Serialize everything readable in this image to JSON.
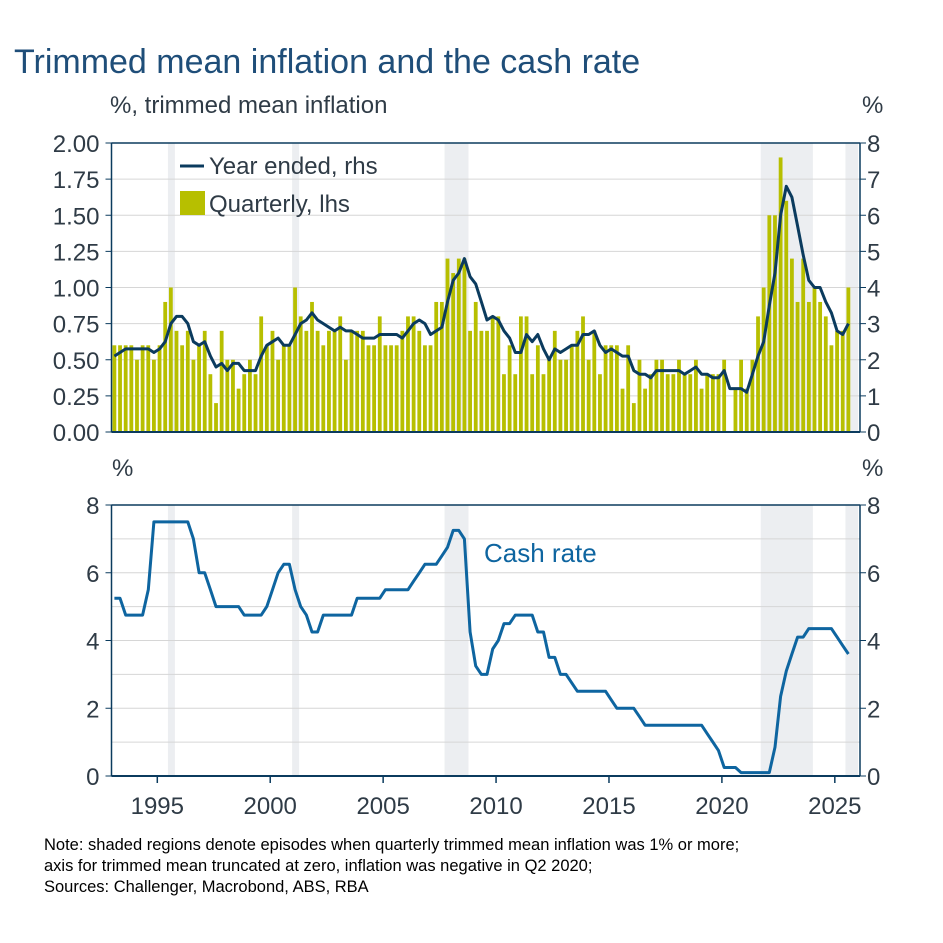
{
  "title": "Trimmed mean inflation and the cash rate",
  "colors": {
    "title": "#1f4e79",
    "quarterly_bars": "#b7bf00",
    "year_ended_line": "#0b3b5e",
    "cash_rate_line": "#0e65a0",
    "shading": "#eceef1",
    "axis": "#0b3b5e",
    "grid": "#d6d6d6"
  },
  "shaded_episodes": [
    [
      "1995Q3",
      "1995Q3"
    ],
    [
      "2001Q1",
      "2001Q1"
    ],
    [
      "2007Q4",
      "2008Q3"
    ],
    [
      "2021Q4",
      "2023Q4"
    ],
    [
      "2025Q3",
      "2025Q4"
    ]
  ],
  "x_axis": {
    "ticks": [
      "1995",
      "2000",
      "2005",
      "2010",
      "2015",
      "2020",
      "2025"
    ]
  },
  "chart_data": [
    {
      "type": "bar+line",
      "left_axis_label": "%, trimmed mean inflation",
      "right_axis_label": "%",
      "ylim_left": [
        0,
        2
      ],
      "ylim_right": [
        0,
        8
      ],
      "yticks_left": [
        "0.00",
        "0.25",
        "0.50",
        "0.75",
        "1.00",
        "1.25",
        "1.50",
        "1.75",
        "2.00"
      ],
      "yticks_right": [
        "0",
        "1",
        "2",
        "3",
        "4",
        "5",
        "6",
        "7",
        "8"
      ],
      "grid": true,
      "legend_placement": "top-left",
      "start_quarter": "1993Q1",
      "series": [
        {
          "name": "Year ended, rhs",
          "type": "line",
          "axis": "right",
          "values": [
            2.1,
            2.2,
            2.3,
            2.3,
            2.3,
            2.3,
            2.3,
            2.2,
            2.3,
            2.5,
            3.0,
            3.2,
            3.2,
            3.0,
            2.5,
            2.4,
            2.5,
            2.1,
            1.8,
            1.9,
            1.7,
            1.9,
            1.9,
            1.7,
            1.7,
            1.7,
            2.1,
            2.4,
            2.5,
            2.6,
            2.4,
            2.4,
            2.7,
            3.0,
            3.1,
            3.3,
            3.1,
            3.0,
            2.9,
            2.8,
            2.9,
            2.8,
            2.8,
            2.7,
            2.6,
            2.6,
            2.6,
            2.7,
            2.7,
            2.7,
            2.7,
            2.6,
            2.8,
            3.0,
            3.1,
            3.0,
            2.7,
            2.8,
            2.9,
            3.6,
            4.2,
            4.4,
            4.8,
            4.3,
            4.1,
            3.6,
            3.1,
            3.2,
            3.1,
            2.8,
            2.6,
            2.2,
            2.2,
            2.7,
            2.5,
            2.7,
            2.3,
            2.0,
            2.3,
            2.2,
            2.3,
            2.4,
            2.4,
            2.7,
            2.7,
            2.8,
            2.4,
            2.2,
            2.3,
            2.2,
            2.1,
            2.1,
            1.7,
            1.6,
            1.6,
            1.5,
            1.7,
            1.7,
            1.7,
            1.7,
            1.7,
            1.6,
            1.7,
            1.8,
            1.6,
            1.6,
            1.5,
            1.5,
            1.7,
            1.2,
            1.2,
            1.2,
            1.1,
            1.6,
            2.1,
            2.5,
            3.5,
            4.4,
            6.0,
            6.8,
            6.5,
            5.7,
            4.9,
            4.2,
            4.0,
            4.0,
            3.6,
            3.3,
            2.8,
            2.7,
            3.0
          ]
        },
        {
          "name": "Quarterly, lhs",
          "type": "bar",
          "axis": "left",
          "values": [
            0.6,
            0.6,
            0.6,
            0.6,
            0.5,
            0.6,
            0.6,
            0.5,
            0.6,
            0.9,
            1.0,
            0.7,
            0.6,
            0.7,
            0.5,
            0.6,
            0.7,
            0.4,
            0.2,
            0.7,
            0.5,
            0.5,
            0.3,
            0.4,
            0.5,
            0.4,
            0.8,
            0.6,
            0.7,
            0.5,
            0.6,
            0.6,
            1.0,
            0.8,
            0.7,
            0.9,
            0.7,
            0.6,
            0.7,
            0.7,
            0.8,
            0.5,
            0.7,
            0.7,
            0.7,
            0.6,
            0.6,
            0.8,
            0.6,
            0.6,
            0.6,
            0.7,
            0.8,
            0.8,
            0.7,
            0.6,
            0.6,
            0.9,
            0.9,
            1.2,
            1.1,
            1.2,
            1.2,
            0.7,
            0.9,
            0.7,
            0.7,
            0.8,
            0.8,
            0.4,
            0.6,
            0.4,
            0.8,
            0.8,
            0.4,
            0.6,
            0.4,
            0.5,
            0.7,
            0.5,
            0.5,
            0.6,
            0.7,
            0.8,
            0.5,
            0.7,
            0.4,
            0.6,
            0.6,
            0.6,
            0.3,
            0.6,
            0.2,
            0.5,
            0.3,
            0.4,
            0.5,
            0.5,
            0.4,
            0.4,
            0.5,
            0.4,
            0.4,
            0.5,
            0.3,
            0.4,
            0.4,
            0.4,
            0.5,
            0.0,
            0.3,
            0.5,
            0.3,
            0.5,
            0.8,
            1.0,
            1.5,
            1.5,
            1.9,
            1.6,
            1.2,
            0.9,
            1.2,
            0.9,
            1.0,
            0.9,
            0.8,
            0.6,
            0.7,
            0.7,
            1.0
          ]
        }
      ]
    },
    {
      "type": "line",
      "left_axis_label": "%",
      "right_axis_label": "%",
      "ylim": [
        0,
        8
      ],
      "yticks": [
        "0",
        "2",
        "4",
        "6",
        "8"
      ],
      "grid": true,
      "start_quarter": "1993Q1",
      "annotation": "Cash rate",
      "series": [
        {
          "name": "Cash rate",
          "values": [
            5.25,
            5.25,
            4.75,
            4.75,
            4.75,
            4.75,
            5.5,
            7.5,
            7.5,
            7.5,
            7.5,
            7.5,
            7.5,
            7.5,
            7.0,
            6.0,
            6.0,
            5.5,
            5.0,
            5.0,
            5.0,
            5.0,
            5.0,
            4.75,
            4.75,
            4.75,
            4.75,
            5.0,
            5.5,
            6.0,
            6.25,
            6.25,
            5.5,
            5.0,
            4.75,
            4.25,
            4.25,
            4.75,
            4.75,
            4.75,
            4.75,
            4.75,
            4.75,
            5.25,
            5.25,
            5.25,
            5.25,
            5.25,
            5.5,
            5.5,
            5.5,
            5.5,
            5.5,
            5.75,
            6.0,
            6.25,
            6.25,
            6.25,
            6.5,
            6.75,
            7.25,
            7.25,
            7.0,
            4.25,
            3.25,
            3.0,
            3.0,
            3.75,
            4.0,
            4.5,
            4.5,
            4.75,
            4.75,
            4.75,
            4.75,
            4.25,
            4.25,
            3.5,
            3.5,
            3.0,
            3.0,
            2.75,
            2.5,
            2.5,
            2.5,
            2.5,
            2.5,
            2.5,
            2.25,
            2.0,
            2.0,
            2.0,
            2.0,
            1.75,
            1.5,
            1.5,
            1.5,
            1.5,
            1.5,
            1.5,
            1.5,
            1.5,
            1.5,
            1.5,
            1.5,
            1.25,
            1.0,
            0.75,
            0.25,
            0.25,
            0.25,
            0.1,
            0.1,
            0.1,
            0.1,
            0.1,
            0.1,
            0.85,
            2.35,
            3.1,
            3.6,
            4.1,
            4.1,
            4.35,
            4.35,
            4.35,
            4.35,
            4.35,
            4.1,
            3.85,
            3.6
          ]
        }
      ]
    }
  ],
  "notes": [
    "Note: shaded regions denote episodes when quarterly trimmed mean inflation was 1% or more;",
    "axis for trimmed mean truncated at zero, inflation was negative in Q2 2020;",
    "Sources: Challenger, Macrobond, ABS, RBA"
  ]
}
